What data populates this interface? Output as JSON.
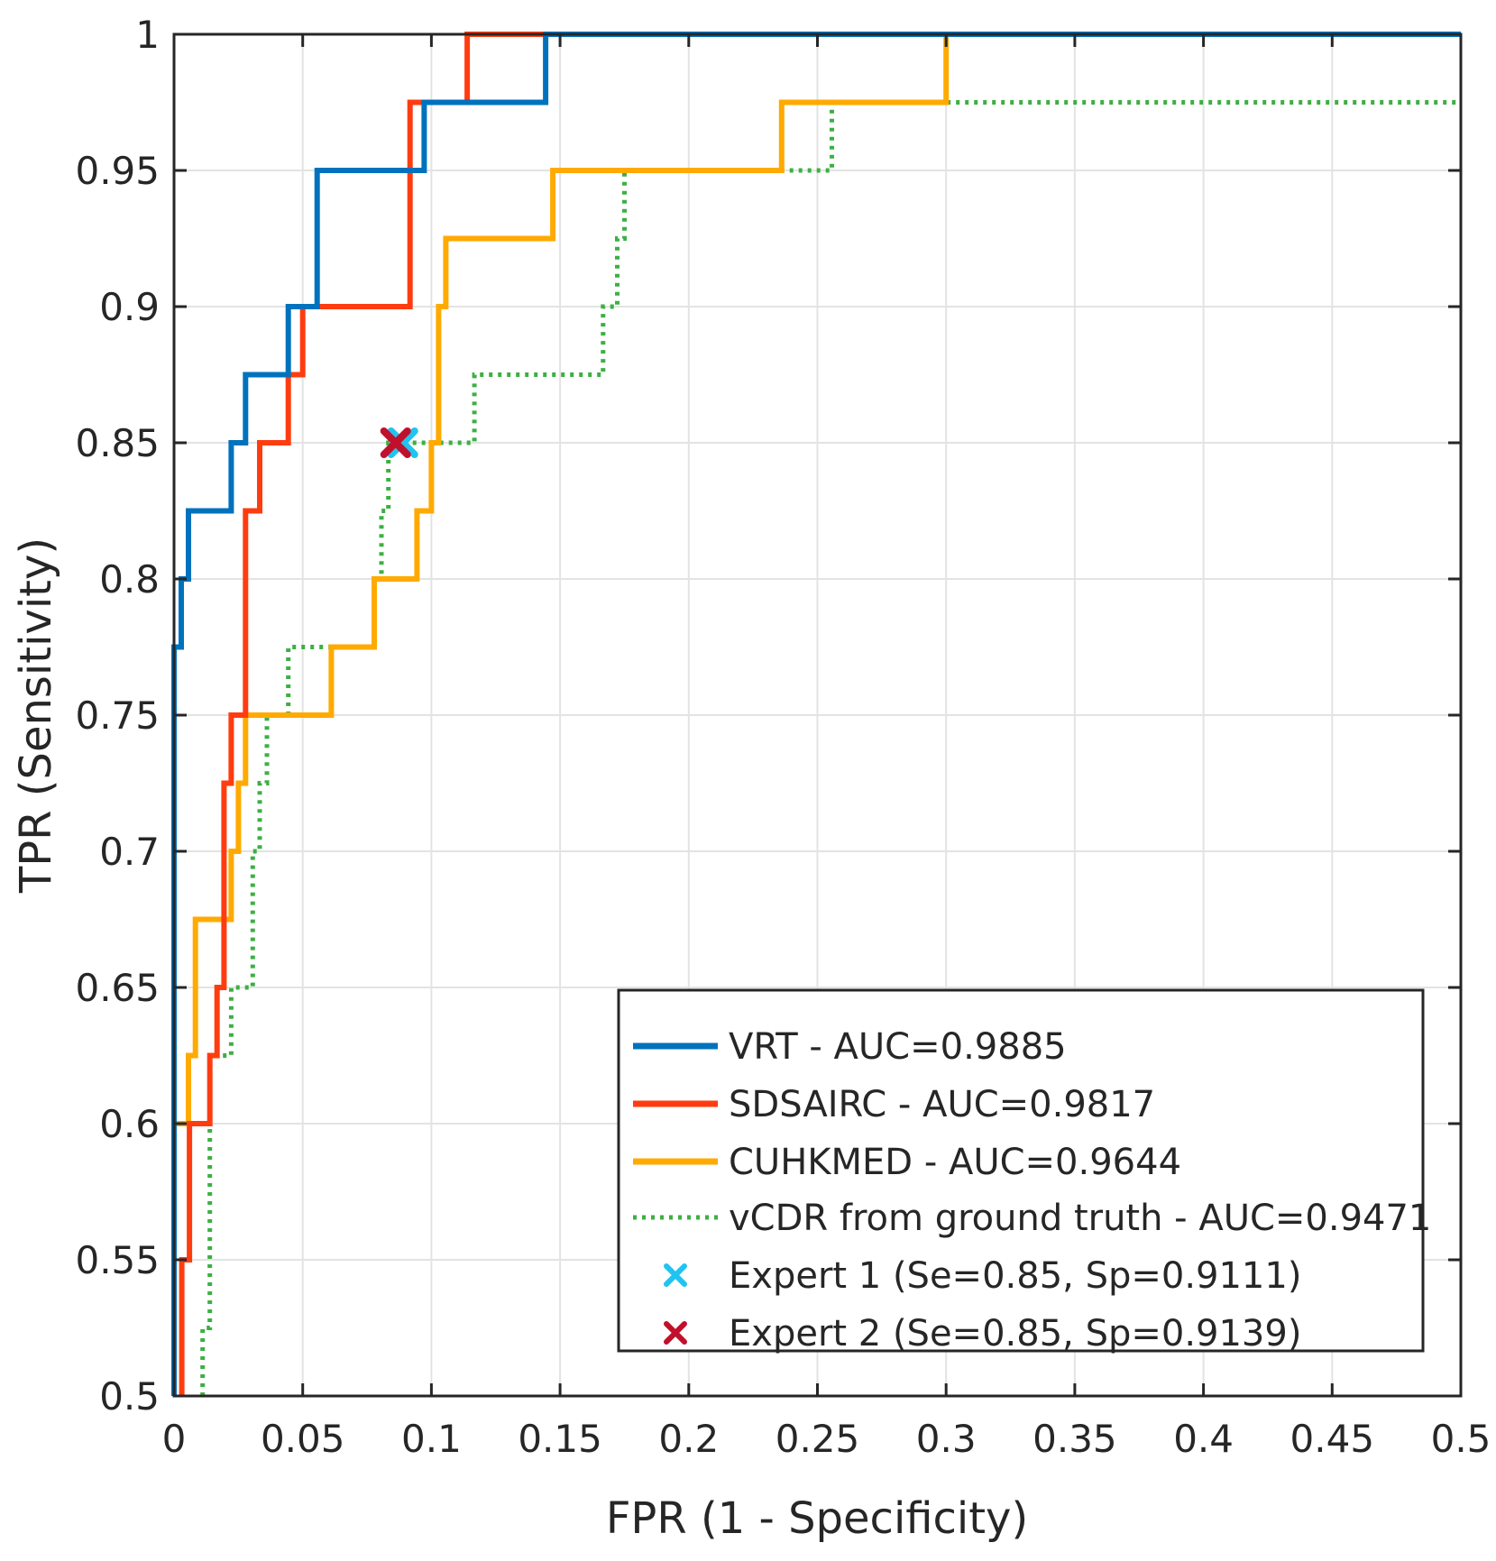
{
  "chart_data": {
    "type": "line",
    "title": "",
    "xlabel": "FPR (1 - Specificity)",
    "ylabel": "TPR (Sensitivity)",
    "xlim": [
      0,
      0.5
    ],
    "ylim": [
      0.5,
      1
    ],
    "grid": true,
    "legend_position": "bottom-right",
    "x_ticks": [
      0,
      0.05,
      0.1,
      0.15,
      0.2,
      0.25,
      0.3,
      0.35,
      0.4,
      0.45,
      0.5
    ],
    "x_tick_labels": [
      "0",
      "0.05",
      "0.1",
      "0.15",
      "0.2",
      "0.25",
      "0.3",
      "0.35",
      "0.4",
      "0.45",
      "0.5"
    ],
    "y_ticks": [
      0.5,
      0.55,
      0.6,
      0.65,
      0.7,
      0.75,
      0.8,
      0.85,
      0.9,
      0.95,
      1
    ],
    "y_tick_labels": [
      "0.5",
      "0.55",
      "0.6",
      "0.65",
      "0.7",
      "0.75",
      "0.8",
      "0.85",
      "0.9",
      "0.95",
      "1"
    ],
    "series": [
      {
        "name": "VRT - AUC=0.9885",
        "color": "#0072bd",
        "style": "solid",
        "x": [
          0,
          0,
          0.0028,
          0.0028,
          0.0056,
          0.0056,
          0.0222,
          0.0222,
          0.0278,
          0.0278,
          0.0444,
          0.0444,
          0.0556,
          0.0556,
          0.0972,
          0.0972,
          0.1,
          0.1,
          0.1444,
          0.1444,
          0.5
        ],
        "y": [
          0.5,
          0.775,
          0.775,
          0.8,
          0.8,
          0.825,
          0.825,
          0.85,
          0.85,
          0.875,
          0.875,
          0.9,
          0.9,
          0.95,
          0.95,
          0.975,
          0.975,
          0.975,
          0.975,
          1,
          1
        ]
      },
      {
        "name": "SDSAIRC - AUC=0.9817",
        "color": "#ff3c10",
        "style": "solid",
        "x": [
          0.003,
          0.003,
          0.006,
          0.006,
          0.0139,
          0.0139,
          0.0167,
          0.0167,
          0.0194,
          0.0194,
          0.0222,
          0.0222,
          0.0278,
          0.0278,
          0.0306,
          0.0306,
          0.0333,
          0.0333,
          0.0444,
          0.0444,
          0.05,
          0.05,
          0.0917,
          0.0917,
          0.1083,
          0.1083,
          0.1139,
          0.1139,
          0.5
        ],
        "y": [
          0.5,
          0.55,
          0.55,
          0.6,
          0.6,
          0.625,
          0.625,
          0.65,
          0.65,
          0.725,
          0.725,
          0.75,
          0.75,
          0.825,
          0.825,
          0.825,
          0.825,
          0.85,
          0.85,
          0.875,
          0.875,
          0.9,
          0.9,
          0.975,
          0.975,
          0.975,
          0.975,
          1,
          1
        ]
      },
      {
        "name": "CUHKMED - AUC=0.9644",
        "color": "#ffaa00",
        "style": "solid",
        "x": [
          0,
          0,
          0.0056,
          0.0056,
          0.0083,
          0.0083,
          0.0222,
          0.0222,
          0.025,
          0.025,
          0.0278,
          0.0278,
          0.0611,
          0.0611,
          0.0778,
          0.0778,
          0.0944,
          0.0944,
          0.1,
          0.1,
          0.1028,
          0.1028,
          0.1056,
          0.1056,
          0.1472,
          0.1472,
          0.2361,
          0.2361,
          0.3,
          0.3,
          0.5
        ],
        "y": [
          0.5,
          0.6,
          0.6,
          0.625,
          0.625,
          0.675,
          0.675,
          0.7,
          0.7,
          0.725,
          0.725,
          0.75,
          0.75,
          0.775,
          0.775,
          0.8,
          0.8,
          0.825,
          0.825,
          0.85,
          0.85,
          0.9,
          0.9,
          0.925,
          0.925,
          0.95,
          0.95,
          0.975,
          0.975,
          1,
          1
        ]
      },
      {
        "name": "vCDR from ground truth - AUC=0.9471",
        "color": "#3cb043",
        "style": "dotted",
        "x": [
          0.0111,
          0.0111,
          0.0139,
          0.0139,
          0.0222,
          0.0222,
          0.0278,
          0.0278,
          0.0306,
          0.0306,
          0.0333,
          0.0333,
          0.0361,
          0.0361,
          0.0444,
          0.0444,
          0.0778,
          0.0778,
          0.0806,
          0.0806,
          0.0833,
          0.0833,
          0.1167,
          0.1167,
          0.1667,
          0.1667,
          0.1722,
          0.1722,
          0.175,
          0.175,
          0.2556,
          0.2556,
          0.5
        ],
        "y": [
          0.5,
          0.525,
          0.525,
          0.625,
          0.625,
          0.65,
          0.65,
          0.65,
          0.65,
          0.7,
          0.7,
          0.725,
          0.725,
          0.75,
          0.75,
          0.775,
          0.775,
          0.8,
          0.8,
          0.825,
          0.825,
          0.85,
          0.85,
          0.875,
          0.875,
          0.9,
          0.9,
          0.925,
          0.925,
          0.95,
          0.95,
          0.975,
          0.975
        ]
      }
    ],
    "points": [
      {
        "name": "Expert 1 (Se=0.85, Sp=0.9111)",
        "x": 0.0889,
        "y": 0.85,
        "color": "#20c4f0",
        "marker": "x"
      },
      {
        "name": "Expert 2 (Se=0.85, Sp=0.9139)",
        "x": 0.0861,
        "y": 0.85,
        "color": "#c0102c",
        "marker": "x"
      }
    ]
  }
}
